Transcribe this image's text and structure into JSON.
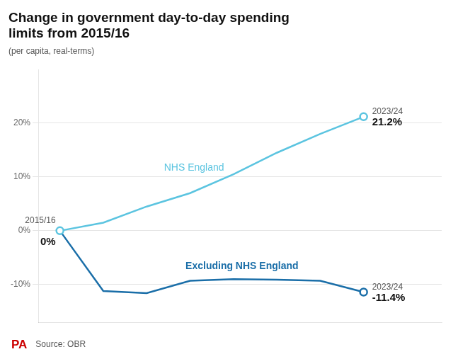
{
  "chart_data": {
    "type": "line",
    "title": "Change in government day-to-day spending\nlimits from 2015/16",
    "subtitle": "(per capita, real-terms)",
    "source": "Source: OBR",
    "x": [
      0,
      1,
      2,
      3,
      4,
      5,
      6,
      7
    ],
    "series": [
      {
        "name": "NHS England",
        "color": "#5bc4e0",
        "values": [
          0,
          1.5,
          4.5,
          7.0,
          10.5,
          14.5,
          18.0,
          21.2
        ]
      },
      {
        "name": "Excluding NHS England",
        "color": "#1a6ea8",
        "values": [
          0,
          -11.2,
          -11.6,
          -9.3,
          -9.0,
          -9.1,
          -9.3,
          -11.4
        ]
      }
    ],
    "annotations": [
      {
        "text": "2015/16",
        "x": 0,
        "y": 0
      },
      {
        "text": "0%",
        "x": 0,
        "y": 0
      },
      {
        "text": "2023/24",
        "x": 7,
        "y": 21.2
      },
      {
        "text": "21.2%",
        "x": 7,
        "y": 21.2
      },
      {
        "text": "2023/24",
        "x": 7,
        "y": -11.4
      },
      {
        "text": "-11.4%",
        "x": 7,
        "y": -11.4
      },
      {
        "text": "PA",
        "color": "#cc0000"
      }
    ],
    "xlim": [
      -0.5,
      8.8
    ],
    "ylim": [
      -17,
      30
    ],
    "yticks": [
      {
        "value": -10,
        "label": "-10%"
      },
      {
        "value": 0,
        "label": "0%"
      },
      {
        "value": 10,
        "label": "10%"
      },
      {
        "value": 20,
        "label": "20%"
      }
    ],
    "tick_labels": "y",
    "grid": true
  }
}
